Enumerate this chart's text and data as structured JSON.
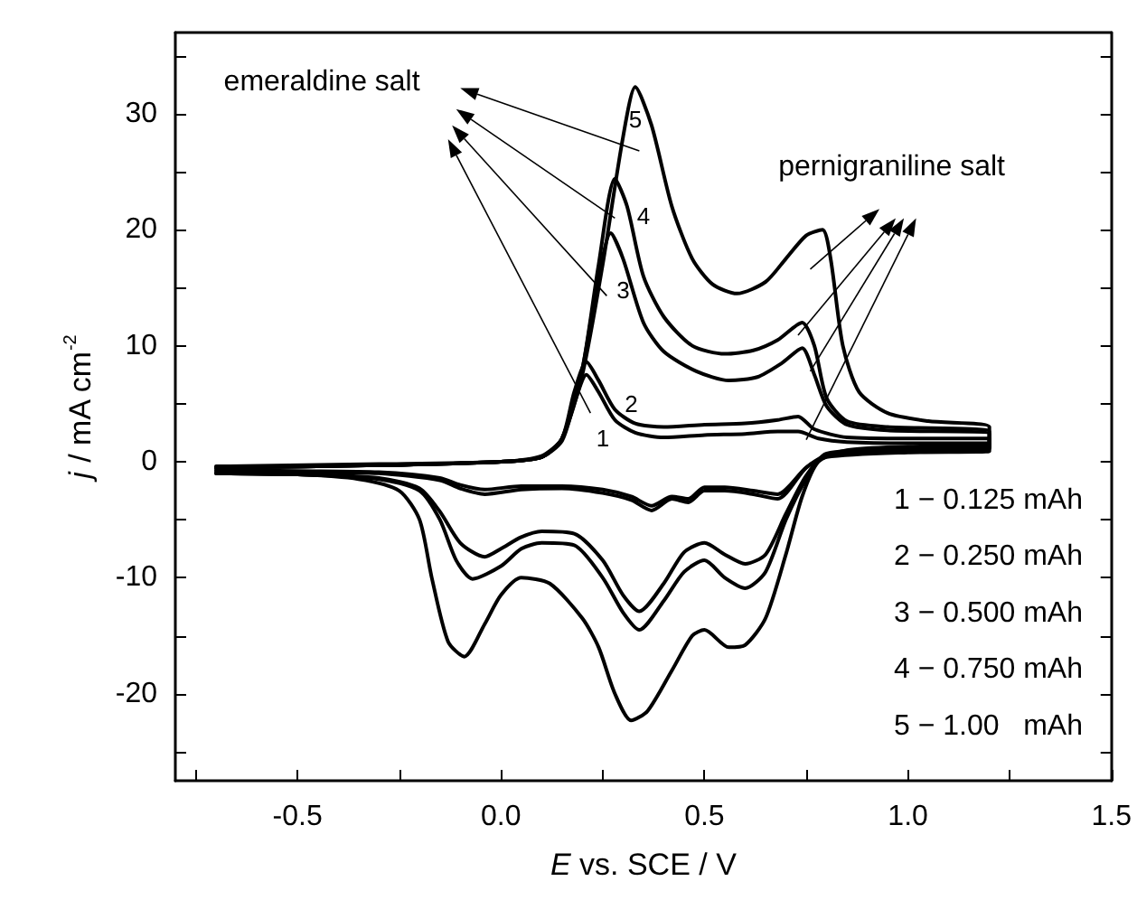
{
  "chart_data": {
    "type": "line",
    "xlabel": "E vs. SCE / V",
    "ylabel": "j / mA cm$^{-2}$",
    "xlim": [
      -0.8,
      1.5
    ],
    "xticks": [
      -0.5,
      {
        "value": 0,
        "label": "0.0"
      },
      0.5,
      {
        "value": 1,
        "label": "1.0"
      },
      1.5
    ],
    "ylim": [
      -27.5,
      37
    ],
    "yticks": [
      -20,
      -10,
      0,
      10,
      20,
      30
    ],
    "grid": false,
    "marker": "none",
    "line_style": "solid",
    "series": [
      {
        "color": "#000000",
        "x": [
          -0.7,
          -0.3,
          0,
          0.1,
          0.15,
          0.18,
          0.21,
          0.24,
          0.28,
          0.33,
          0.4,
          0.5,
          0.6,
          0.68,
          0.73,
          0.78,
          0.85,
          1.0,
          1.2,
          1.2,
          1.0,
          0.8,
          0.75,
          0.68,
          0.62,
          0.55,
          0.5,
          0.46,
          0.42,
          0.37,
          0.32,
          0.25,
          0.15,
          0.05,
          -0.04,
          -0.1,
          -0.15,
          -0.3,
          -0.5,
          -0.7
        ],
        "values": [
          -0.4,
          -0.2,
          0,
          0.4,
          1.8,
          5,
          7.5,
          6,
          3.6,
          2.5,
          2.1,
          2.3,
          2.4,
          2.6,
          2.6,
          2,
          1.7,
          1.6,
          1.6,
          0.9,
          0.8,
          0.4,
          -0.5,
          -2.8,
          -2.5,
          -2.2,
          -2.2,
          -3.2,
          -3.0,
          -3.8,
          -3,
          -2.4,
          -2.1,
          -2.1,
          -2.4,
          -2.0,
          -1.4,
          -0.9,
          -0.8,
          -0.7
        ]
      },
      {
        "color": "#000000",
        "x": [
          -0.7,
          -0.3,
          0,
          0.1,
          0.15,
          0.18,
          0.21,
          0.24,
          0.28,
          0.33,
          0.4,
          0.5,
          0.6,
          0.68,
          0.73,
          0.77,
          0.85,
          1.0,
          1.2,
          1.2,
          1.0,
          0.8,
          0.75,
          0.68,
          0.62,
          0.55,
          0.5,
          0.46,
          0.42,
          0.37,
          0.32,
          0.25,
          0.15,
          0.05,
          -0.04,
          -0.1,
          -0.15,
          -0.3,
          -0.5,
          -0.7
        ],
        "values": [
          -0.5,
          -0.3,
          0,
          0.4,
          2,
          6,
          8.6,
          7,
          4.5,
          3.3,
          3,
          3.2,
          3.3,
          3.6,
          3.9,
          2.8,
          2.1,
          2.0,
          2.0,
          1.1,
          0.9,
          0.5,
          -0.5,
          -3.2,
          -2.8,
          -2.5,
          -2.5,
          -3.5,
          -3.2,
          -4.2,
          -3.3,
          -2.7,
          -2.3,
          -2.4,
          -2.8,
          -2.3,
          -1.6,
          -1.0,
          -0.9,
          -0.8
        ]
      },
      {
        "color": "#000000",
        "x": [
          -0.7,
          -0.3,
          0,
          0.1,
          0.15,
          0.2,
          0.23,
          0.27,
          0.3,
          0.35,
          0.4,
          0.48,
          0.56,
          0.63,
          0.69,
          0.74,
          0.77,
          0.8,
          0.85,
          0.95,
          1.2,
          1.2,
          1.0,
          0.8,
          0.75,
          0.7,
          0.65,
          0.6,
          0.55,
          0.5,
          0.45,
          0.4,
          0.34,
          0.3,
          0.25,
          0.18,
          0.1,
          0.05,
          0,
          -0.04,
          -0.1,
          -0.15,
          -0.2,
          -0.3,
          -0.5,
          -0.7
        ],
        "values": [
          -0.5,
          -0.3,
          0,
          0.4,
          2,
          8,
          14,
          19.7,
          17.5,
          12,
          9.5,
          7.8,
          7,
          7.3,
          8.5,
          9.8,
          7.5,
          4.8,
          3.2,
          2.7,
          2.4,
          1.2,
          1.0,
          0.6,
          -1.2,
          -4.5,
          -8,
          -8.8,
          -8,
          -7,
          -7.8,
          -10.5,
          -12.9,
          -11.5,
          -8.5,
          -6.2,
          -6,
          -6.5,
          -7.5,
          -8.2,
          -7,
          -4.3,
          -2.3,
          -1.4,
          -1.1,
          -1.0
        ]
      },
      {
        "color": "#000000",
        "x": [
          -0.7,
          -0.3,
          0,
          0.1,
          0.15,
          0.2,
          0.24,
          0.28,
          0.31,
          0.35,
          0.4,
          0.47,
          0.55,
          0.62,
          0.68,
          0.74,
          0.77,
          0.8,
          0.85,
          0.95,
          1.2,
          1.2,
          1.0,
          0.8,
          0.75,
          0.7,
          0.65,
          0.6,
          0.55,
          0.5,
          0.45,
          0.4,
          0.34,
          0.3,
          0.25,
          0.18,
          0.1,
          0.05,
          0,
          -0.07,
          -0.11,
          -0.15,
          -0.2,
          -0.3,
          -0.5,
          -0.7
        ],
        "values": [
          -0.5,
          -0.3,
          0,
          0.4,
          2,
          8,
          17,
          24.4,
          22,
          16,
          12.5,
          10,
          9.3,
          9.6,
          10.5,
          12,
          10,
          5.5,
          3.5,
          3,
          2.6,
          1.3,
          1.1,
          0.7,
          -1.5,
          -5,
          -9.5,
          -10.9,
          -10,
          -8.5,
          -9.5,
          -12,
          -14.5,
          -13,
          -10,
          -7.2,
          -7,
          -7.5,
          -9,
          -10.1,
          -8.5,
          -5,
          -2.5,
          -1.5,
          -1.1,
          -1.0
        ]
      },
      {
        "color": "#000000",
        "x": [
          -0.7,
          -0.3,
          0,
          0.1,
          0.15,
          0.2,
          0.25,
          0.3,
          0.33,
          0.37,
          0.42,
          0.47,
          0.52,
          0.58,
          0.65,
          0.7,
          0.75,
          0.79,
          0.81,
          0.84,
          0.88,
          0.95,
          1.05,
          1.2,
          1.2,
          1.0,
          0.85,
          0.78,
          0.74,
          0.7,
          0.65,
          0.6,
          0.56,
          0.5,
          0.47,
          0.42,
          0.36,
          0.32,
          0.28,
          0.24,
          0.2,
          0.12,
          0.05,
          0,
          -0.04,
          -0.09,
          -0.13,
          -0.17,
          -0.2,
          -0.25,
          -0.35,
          -0.5,
          -0.7
        ],
        "values": [
          -0.5,
          -0.3,
          0,
          0.5,
          2,
          7.5,
          17,
          28,
          32.3,
          29,
          22,
          17.5,
          15.3,
          14.5,
          15.5,
          17.5,
          19.5,
          20,
          17.5,
          10,
          6,
          4.2,
          3.5,
          3.0,
          1.5,
          1.3,
          1.0,
          0,
          -3,
          -8,
          -13.5,
          -15.8,
          -16,
          -14.5,
          -15,
          -18,
          -21.5,
          -22.3,
          -20,
          -16,
          -13.5,
          -10.5,
          -10,
          -11.5,
          -14,
          -16.8,
          -15.5,
          -10,
          -5,
          -2.5,
          -1.5,
          -1.1,
          -1.0
        ]
      }
    ],
    "annotations": [
      "emeraldine salt",
      "pernigraniline salt",
      "1",
      "2",
      "3",
      "4",
      "5",
      "1 − 0.125 mAh",
      "2 − 0.250 mAh",
      "3 − 0.500 mAh",
      "4 − 0.750 mAh",
      "5 − 1.00   mAh"
    ]
  }
}
